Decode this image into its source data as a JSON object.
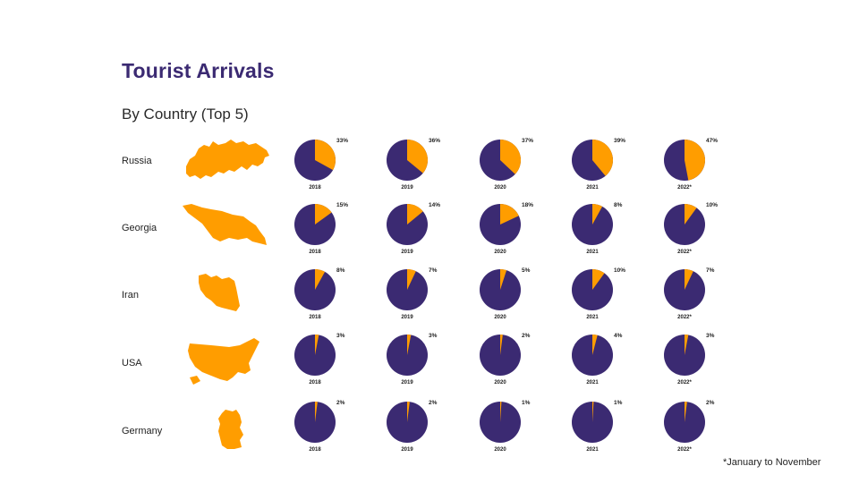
{
  "header": {
    "title": "Tourist Arrivals",
    "subtitle": "By Country (Top 5)"
  },
  "footnote": "*January to November",
  "colors": {
    "primary": "#3b2a72",
    "accent": "#ff9d00"
  },
  "chart_data": {
    "type": "pie",
    "title": "Tourist Arrivals",
    "subtitle": "By Country (Top 5)",
    "years": [
      "2018",
      "2019",
      "2020",
      "2021",
      "2022*"
    ],
    "countries": [
      {
        "name": "Russia",
        "map_icon": "russia-map-icon",
        "values": [
          33,
          36,
          37,
          39,
          47
        ],
        "labels": [
          "33%",
          "36%",
          "37%",
          "39%",
          "47%"
        ]
      },
      {
        "name": "Georgia",
        "map_icon": "georgia-map-icon",
        "values": [
          15,
          14,
          18,
          8,
          10
        ],
        "labels": [
          "15%",
          "14%",
          "18%",
          "8%",
          "10%"
        ]
      },
      {
        "name": "Iran",
        "map_icon": "iran-map-icon",
        "values": [
          8,
          7,
          5,
          10,
          7
        ],
        "labels": [
          "8%",
          "7%",
          "5%",
          "10%",
          "7%"
        ]
      },
      {
        "name": "USA",
        "map_icon": "usa-map-icon",
        "values": [
          3,
          3,
          2,
          4,
          3
        ],
        "labels": [
          "3%",
          "3%",
          "2%",
          "4%",
          "3%"
        ]
      },
      {
        "name": "Germany",
        "map_icon": "germany-map-icon",
        "values": [
          2,
          2,
          1,
          1,
          2
        ],
        "labels": [
          "2%",
          "2%",
          "1%",
          "1%",
          "2%"
        ]
      }
    ],
    "legend": "none"
  }
}
